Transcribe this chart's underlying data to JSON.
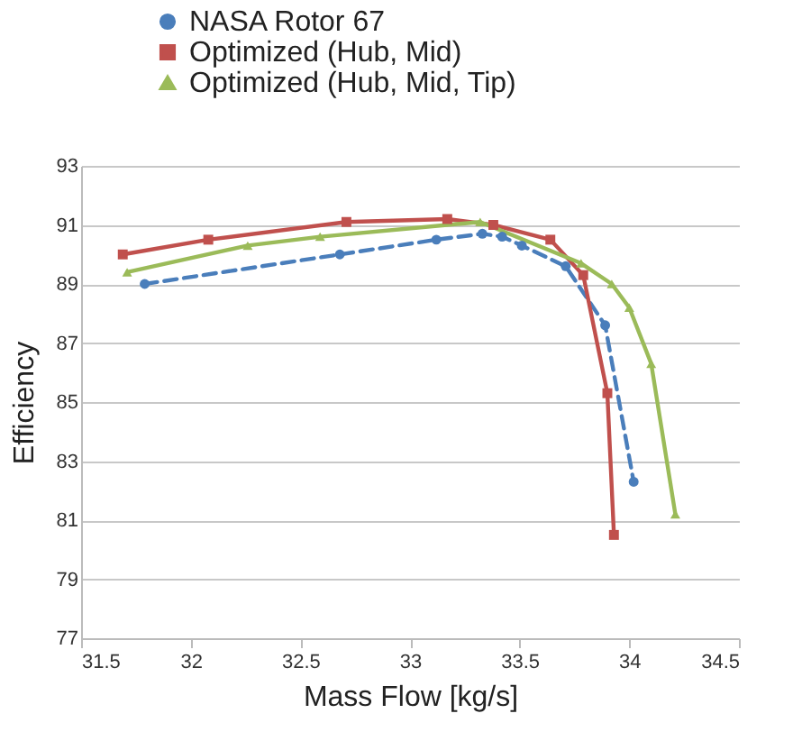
{
  "chart_data": {
    "type": "line",
    "xlabel": "Mass Flow [kg/s]",
    "ylabel": "Efficiency",
    "xlim": [
      31.5,
      34.5
    ],
    "xticks": [
      31.5,
      32,
      32.5,
      33,
      33.5,
      34,
      34.5
    ],
    "ylim": [
      77,
      93
    ],
    "yticks": [
      77,
      79,
      81,
      83,
      85,
      87,
      89,
      91,
      93
    ],
    "grid": "y",
    "legend": "top",
    "series": [
      {
        "name": "NASA Rotor 67",
        "color": "#4a7ebb",
        "marker": "circle",
        "line_style": "dashed",
        "x": [
          31.79,
          32.68,
          33.12,
          33.33,
          33.42,
          33.51,
          33.71,
          33.89,
          34.02
        ],
        "values": [
          89.0,
          90.0,
          90.5,
          90.7,
          90.6,
          90.3,
          89.6,
          87.6,
          82.3
        ]
      },
      {
        "name": "Optimized (Hub, Mid)",
        "color": "#c0504d",
        "marker": "square",
        "line_style": "solid",
        "x": [
          31.69,
          32.08,
          32.71,
          33.17,
          33.38,
          33.64,
          33.79,
          33.9,
          33.93
        ],
        "values": [
          90.0,
          90.5,
          91.1,
          91.2,
          91.0,
          90.5,
          89.3,
          85.3,
          80.5
        ]
      },
      {
        "name": "Optimized (Hub, Mid, Tip)",
        "color": "#9bbb59",
        "marker": "triangle",
        "line_style": "solid",
        "x": [
          31.71,
          32.26,
          32.59,
          33.32,
          33.78,
          33.92,
          34.0,
          34.1,
          34.21
        ],
        "values": [
          89.4,
          90.3,
          90.6,
          91.1,
          89.7,
          89.0,
          88.2,
          86.3,
          81.2
        ]
      }
    ]
  }
}
